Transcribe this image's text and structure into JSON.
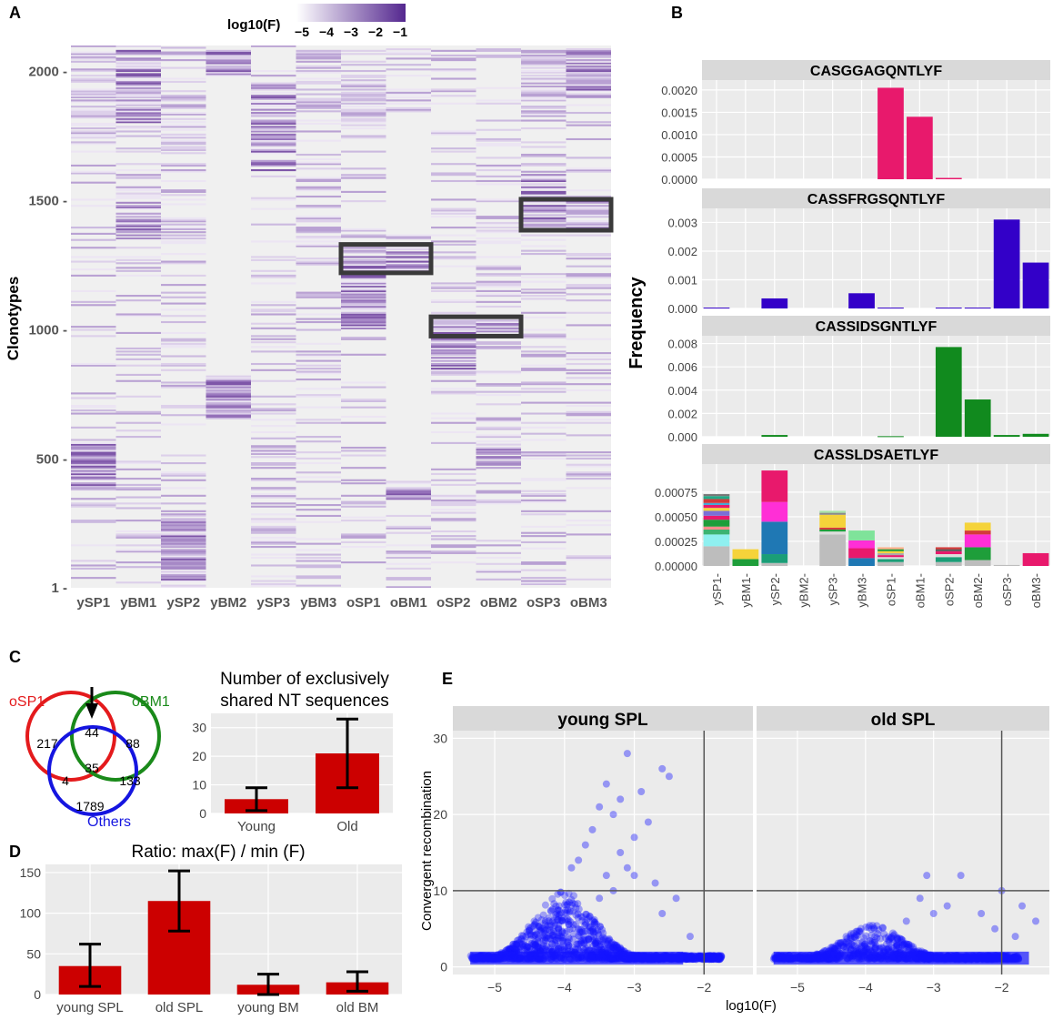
{
  "panel_letters": [
    "A",
    "B",
    "C",
    "D",
    "E"
  ],
  "chart_data": [
    {
      "id": "A",
      "type": "heatmap",
      "legend_title": "log10(F)",
      "legend_ticks": [
        "−5",
        "−4",
        "−3",
        "−2",
        "−1"
      ],
      "legend_range": [
        -5,
        -1
      ],
      "colors": {
        "low": "#f4f0f8",
        "high": "#54278f",
        "background": "#f0f0f0"
      },
      "ylabel": "Clonotypes",
      "ylim": [
        1,
        2100
      ],
      "yticks": [
        1,
        500,
        1000,
        1500,
        2000
      ],
      "ytick_labels": [
        "1 -",
        "500 -",
        "1000 -",
        "1500 -",
        "2000 -"
      ],
      "columns": [
        "ySP1",
        "yBM1",
        "ySP2",
        "yBM2",
        "ySP3",
        "yBM3",
        "oSP1",
        "oBM1",
        "oSP2",
        "oBM2",
        "oSP3",
        "oBM3"
      ],
      "highlight_boxes": [
        {
          "columns": [
            "oSP1",
            "oBM1"
          ],
          "rows": [
            1220,
            1330
          ]
        },
        {
          "columns": [
            "oSP2",
            "oBM2"
          ],
          "rows": [
            975,
            1050
          ]
        },
        {
          "columns": [
            "oSP3",
            "oBM3"
          ],
          "rows": [
            1385,
            1505
          ]
        }
      ]
    },
    {
      "id": "B",
      "type": "bar",
      "stacked": true,
      "ylabel": "Frequency",
      "categories": [
        "ySP1",
        "yBM1",
        "ySP2",
        "yBM2",
        "ySP3",
        "yBM3",
        "oSP1",
        "oBM1",
        "oSP2",
        "oBM2",
        "oSP3",
        "oBM3"
      ],
      "facets": [
        {
          "title": "CASGGAGQNTLYF",
          "ylim": [
            0,
            0.0021
          ],
          "ticks": [
            0,
            0.0005,
            0.001,
            0.0015,
            0.002
          ],
          "tick_labels": [
            "0.0000",
            "0.0005",
            "0.0010",
            "0.0015",
            "0.0020"
          ],
          "color": "#e8196c",
          "values": [
            0,
            0,
            0,
            0,
            0,
            0,
            0.00205,
            0.0014,
            3e-05,
            0,
            0,
            0
          ]
        },
        {
          "title": "CASSFRGSQNTLYF",
          "ylim": [
            0,
            0.0033
          ],
          "ticks": [
            0,
            0.001,
            0.002,
            0.003
          ],
          "tick_labels": [
            "0.000",
            "0.001",
            "0.002",
            "0.003"
          ],
          "color": "#3300c8",
          "values": [
            3e-05,
            0,
            0.00035,
            0,
            0,
            0.00053,
            3e-05,
            0,
            3e-05,
            3e-05,
            0.0031,
            0.0016
          ]
        },
        {
          "title": "CASSIDSGNTLYF",
          "ylim": [
            0,
            0.0082
          ],
          "ticks": [
            0,
            0.002,
            0.004,
            0.006,
            0.008
          ],
          "tick_labels": [
            "0.000",
            "0.002",
            "0.004",
            "0.006",
            "0.008"
          ],
          "color": "#118a1e",
          "values": [
            0,
            0,
            0.00015,
            0,
            0,
            0,
            5e-05,
            0,
            0.0077,
            0.0032,
            0.00015,
            0.00025
          ]
        },
        {
          "title": "CASSLDSAETLYF",
          "ylim": [
            0,
            0.00098
          ],
          "ticks": [
            0,
            0.00025,
            0.0005,
            0.00075
          ],
          "tick_labels": [
            "0.00000",
            "0.00025",
            "0.00050",
            "0.00075"
          ],
          "stacks": [
            [
              [
                "#bdbdbd",
                0.0002
              ],
              [
                "#8ff0f0",
                0.00012
              ],
              [
                "#3cb371",
                5e-05
              ],
              [
                "#ff8c8c",
                3e-05
              ],
              [
                "#1e9e3a",
                7e-05
              ],
              [
                "#e8196c",
                4e-05
              ],
              [
                "#7b6fd6",
                5e-05
              ],
              [
                "#f5d33a",
                3e-05
              ],
              [
                "#e8196c",
                3e-05
              ],
              [
                "#3fa7d6",
                2e-05
              ],
              [
                "#d43a3a",
                4e-05
              ],
              [
                "#22aa88",
                3e-05
              ],
              [
                "#777777",
                2e-05
              ]
            ],
            [
              [
                "#1e9e3a",
                7e-05
              ],
              [
                "#f5d33a",
                0.0001
              ]
            ],
            [
              [
                "#bdbdbd",
                3e-05
              ],
              [
                "#1a9e77",
                9e-05
              ],
              [
                "#1f78b4",
                0.00033
              ],
              [
                "#ff2fd6",
                0.0002
              ],
              [
                "#e8196c",
                0.00032
              ]
            ],
            [],
            [
              [
                "#bdbdbd",
                0.00032
              ],
              [
                "#dddddd",
                3e-05
              ],
              [
                "#1e9e3a",
                2e-05
              ],
              [
                "#d43a3a",
                2e-05
              ],
              [
                "#f5d33a",
                0.0001
              ],
              [
                "#f5d33a",
                3e-05
              ],
              [
                "#8a8a8a",
                2e-05
              ],
              [
                "#a6e3a6",
                2e-05
              ]
            ],
            [
              [
                "#1f78b4",
                8e-05
              ],
              [
                "#e8196c",
                0.0001
              ],
              [
                "#ff2fd6",
                8e-05
              ],
              [
                "#7fe39a",
                0.0001
              ]
            ],
            [
              [
                "#bdbdbd",
                4e-05
              ],
              [
                "#1a9e77",
                3e-05
              ],
              [
                "#dddddd",
                2e-05
              ],
              [
                "#e8196c",
                2e-05
              ],
              [
                "#aaaaaa",
                2e-05
              ],
              [
                "#f5d33a",
                2e-05
              ],
              [
                "#1e9e3a",
                2e-05
              ],
              [
                "#ffb08a",
                2e-05
              ]
            ],
            [],
            [
              [
                "#bdbdbd",
                4e-05
              ],
              [
                "#1a9e77",
                5e-05
              ],
              [
                "#dddddd",
                3e-05
              ],
              [
                "#e8196c",
                3e-05
              ],
              [
                "#555555",
                2e-05
              ],
              [
                "#d43a3a",
                2e-05
              ]
            ],
            [
              [
                "#bdbdbd",
                6e-05
              ],
              [
                "#1e9e3a",
                0.00013
              ],
              [
                "#ff2fd6",
                0.00013
              ],
              [
                "#d43a3a",
                4e-05
              ],
              [
                "#f5d33a",
                8e-05
              ]
            ],
            [
              [
                "#bdbdbd",
                1e-05
              ]
            ],
            [
              [
                "#e8196c",
                0.00013
              ]
            ]
          ]
        }
      ]
    },
    {
      "id": "C-venn",
      "type": "venn",
      "sets": [
        {
          "name": "oSP1",
          "color": "#e41a1c"
        },
        {
          "name": "oBM1",
          "color": "#1a8a1a"
        },
        {
          "name": "Others",
          "color": "#1515e0"
        }
      ],
      "regions": {
        "oSP1_only": 217,
        "oSP1_oBM1": 44,
        "oBM1_only": 88,
        "oSP1_Others": 4,
        "all": 35,
        "oBM1_Others": 133,
        "Others_only": 1789
      }
    },
    {
      "id": "C-bar",
      "type": "bar",
      "title": "Number of exclusively shared NT sequences",
      "title_lines": [
        "Number of exclusively",
        "shared NT sequences"
      ],
      "categories": [
        "Young",
        "Old"
      ],
      "values": [
        5,
        21
      ],
      "errors": [
        [
          1,
          9
        ],
        [
          9,
          33
        ]
      ],
      "ylim": [
        0,
        35
      ],
      "yticks": [
        0,
        10,
        20,
        30
      ],
      "color": "#cc0000"
    },
    {
      "id": "D",
      "type": "bar",
      "title": "Ratio: max(F) / min (F)",
      "categories": [
        "young SPL",
        "old SPL",
        "young BM",
        "old BM"
      ],
      "values": [
        35,
        115,
        12,
        15
      ],
      "errors": [
        [
          10,
          62
        ],
        [
          78,
          152
        ],
        [
          0,
          25
        ],
        [
          4,
          28
        ]
      ],
      "ylim": [
        0,
        160
      ],
      "yticks": [
        0,
        50,
        100,
        150
      ],
      "color": "#cc0000"
    },
    {
      "id": "E",
      "type": "scatter",
      "facets": [
        "young SPL",
        "old SPL"
      ],
      "xlabel": "log10(F)",
      "ylabel": "Convergent recombination",
      "xlim": [
        -5.6,
        -1.3
      ],
      "ylim": [
        -1,
        31
      ],
      "xticks": [
        -5,
        -4,
        -3,
        -2
      ],
      "xtick_labels": [
        "−5",
        "−4",
        "−3",
        "−2"
      ],
      "yticks": [
        0,
        10,
        20,
        30
      ],
      "reference_lines": {
        "x": -2,
        "y": 10
      },
      "color": "#1414ff",
      "series": [
        {
          "name": "young SPL",
          "x": [
            -3.1,
            -2.6,
            -3.4,
            -3.2,
            -2.9,
            -3.5,
            -3.3,
            -2.8,
            -3.6,
            -3.0,
            -2.5,
            -3.7,
            -3.2,
            -2.4,
            -3.8,
            -3.1,
            -3.4,
            -2.7,
            -3.9,
            -3.3,
            -2.2,
            -3.5,
            -2.6,
            -3.0
          ],
          "y": [
            28,
            26,
            24,
            22,
            23,
            21,
            20,
            19,
            18,
            17,
            25,
            16,
            15,
            9,
            14,
            13,
            12,
            11,
            13,
            10,
            4,
            9,
            7,
            12
          ]
        },
        {
          "name": "old SPL",
          "x": [
            -3.1,
            -2.6,
            -3.2,
            -2.0,
            -1.7,
            -2.3,
            -1.5,
            -2.8,
            -3.4,
            -2.1,
            -1.8,
            -3.0
          ],
          "y": [
            12,
            12,
            9,
            10,
            8,
            7,
            6,
            8,
            6,
            5,
            4,
            7
          ]
        }
      ]
    }
  ]
}
